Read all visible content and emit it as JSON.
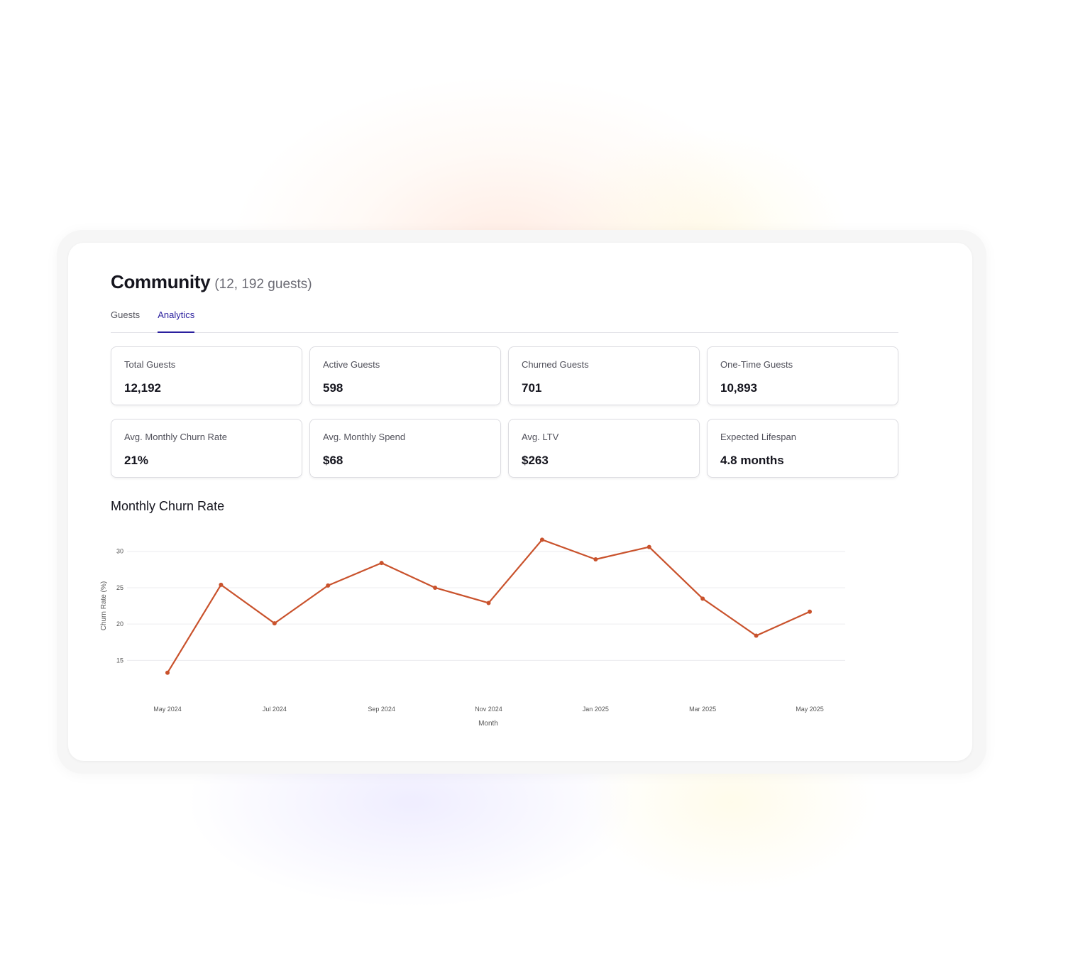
{
  "header": {
    "title": "Community",
    "subtitle": "(12, 192 guests)"
  },
  "tabs": [
    {
      "label": "Guests",
      "active": false
    },
    {
      "label": "Analytics",
      "active": true
    }
  ],
  "stats": [
    {
      "label": "Total Guests",
      "value": "12,192"
    },
    {
      "label": "Active Guests",
      "value": "598"
    },
    {
      "label": "Churned Guests",
      "value": "701"
    },
    {
      "label": "One-Time Guests",
      "value": "10,893"
    },
    {
      "label": "Avg. Monthly Churn Rate",
      "value": "21%"
    },
    {
      "label": "Avg. Monthly Spend",
      "value": "$68"
    },
    {
      "label": "Avg. LTV",
      "value": "$263"
    },
    {
      "label": "Expected Lifespan",
      "value": "4.8 months"
    }
  ],
  "chart": {
    "title": "Monthly Churn Rate"
  },
  "chart_data": {
    "type": "line",
    "x": [
      "2024-05",
      "2024-06",
      "2024-07",
      "2024-08",
      "2024-09",
      "2024-10",
      "2024-11",
      "2024-12",
      "2025-01",
      "2025-02",
      "2025-03",
      "2025-04",
      "2025-05"
    ],
    "x_tick_labels": [
      {
        "x": "2024-05",
        "label": "May 2024"
      },
      {
        "x": "2024-07",
        "label": "Jul 2024"
      },
      {
        "x": "2024-09",
        "label": "Sep 2024"
      },
      {
        "x": "2024-11",
        "label": "Nov 2024"
      },
      {
        "x": "2025-01",
        "label": "Jan 2025"
      },
      {
        "x": "2025-03",
        "label": "Mar 2025"
      },
      {
        "x": "2025-05",
        "label": "May 2025"
      }
    ],
    "series": [
      {
        "values": [
          13.3,
          25.4,
          20.1,
          25.3,
          28.4,
          25.0,
          22.9,
          31.6,
          28.9,
          30.6,
          23.5,
          18.4,
          21.7
        ]
      }
    ],
    "y_ticks": [
      15,
      20,
      25,
      30
    ],
    "ylim": [
      12.5,
      33
    ],
    "xlabel": "Month",
    "ylabel": "Churn Rate (%)",
    "grid": true,
    "line_color": "#c9522c"
  }
}
